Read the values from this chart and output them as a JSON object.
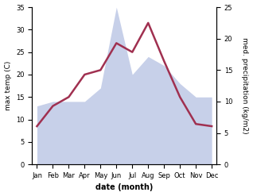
{
  "months": [
    "Jan",
    "Feb",
    "Mar",
    "Apr",
    "May",
    "Jun",
    "Jul",
    "Aug",
    "Sep",
    "Oct",
    "Nov",
    "Dec"
  ],
  "temperature": [
    8.5,
    13.0,
    15.0,
    20.0,
    21.0,
    27.0,
    25.0,
    31.5,
    23.0,
    15.0,
    9.0,
    8.5
  ],
  "precipitation_left": [
    13.0,
    14.0,
    14.0,
    14.0,
    17.0,
    35.0,
    20.0,
    24.0,
    22.0,
    18.0,
    15.0,
    15.0
  ],
  "temp_color": "#a03050",
  "precip_color": "#b0bce0",
  "ylim_left": [
    0,
    35
  ],
  "ylim_right": [
    0,
    25
  ],
  "yticks_left": [
    0,
    5,
    10,
    15,
    20,
    25,
    30,
    35
  ],
  "yticks_right": [
    0,
    5,
    10,
    15,
    20,
    25
  ],
  "xlabel": "date (month)",
  "ylabel_left": "max temp (C)",
  "ylabel_right": "med. precipitation (kg/m2)",
  "temp_linewidth": 1.8,
  "background_color": "#ffffff"
}
